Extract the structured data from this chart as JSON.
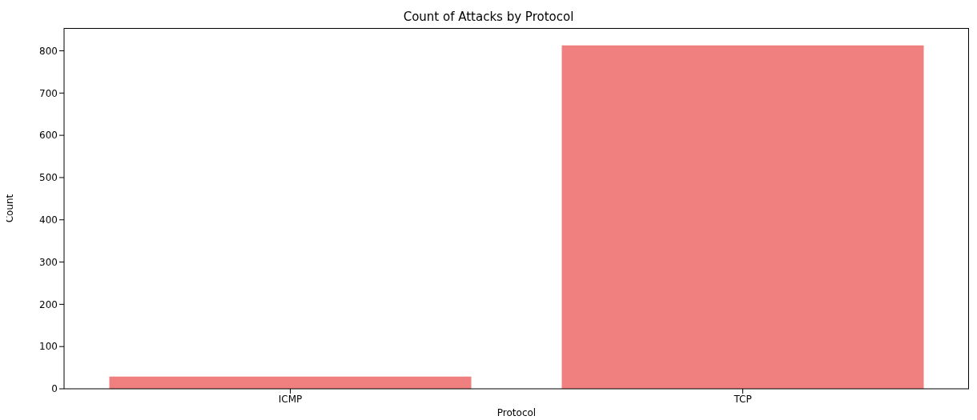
{
  "chart_data": {
    "type": "bar",
    "title": "Count of Attacks by Protocol",
    "xlabel": "Protocol",
    "ylabel": "Count",
    "categories": [
      "ICMP",
      "TCP"
    ],
    "values": [
      29,
      813
    ],
    "color": "#f08080",
    "ylim": [
      0,
      854
    ],
    "yticks": [
      0,
      100,
      200,
      300,
      400,
      500,
      600,
      700,
      800
    ],
    "grid": false
  }
}
